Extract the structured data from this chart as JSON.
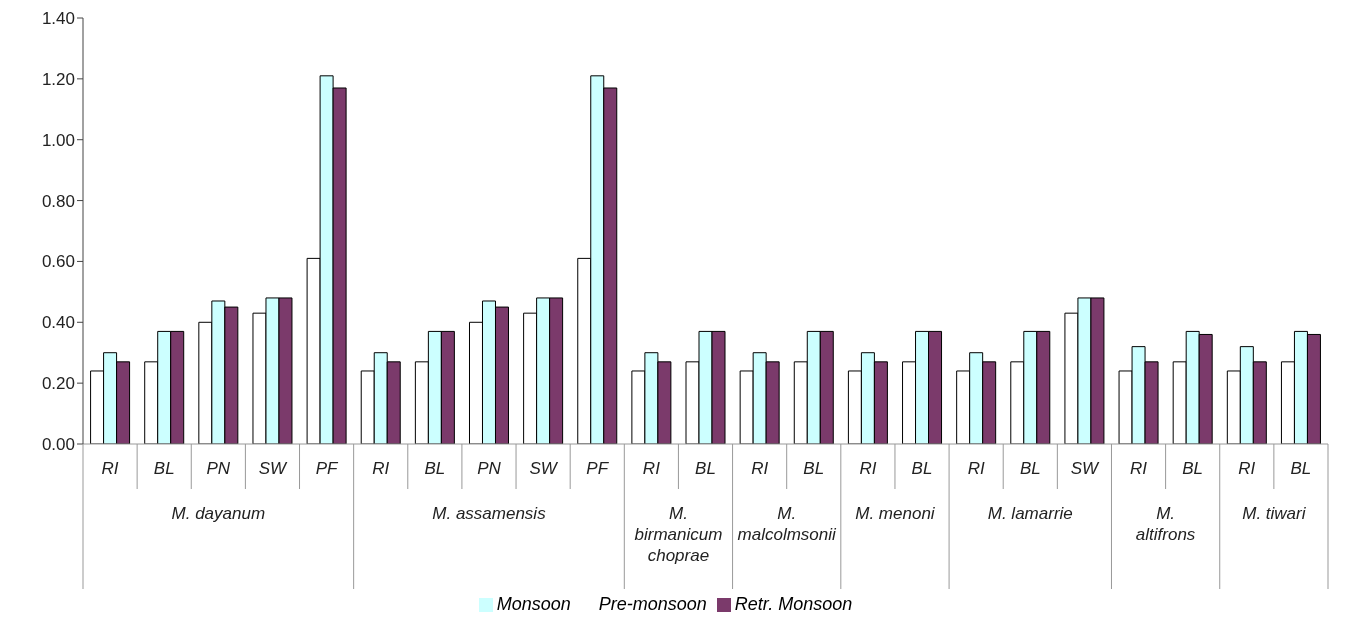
{
  "chart_data": {
    "type": "bar",
    "categories": [
      "RI",
      "BL",
      "PN",
      "SW",
      "PF",
      "RI",
      "BL",
      "PN",
      "SW",
      "PF",
      "RI",
      "BL",
      "RI",
      "BL",
      "RI",
      "BL",
      "RI",
      "BL",
      "SW",
      "RI",
      "BL",
      "RI",
      "BL"
    ],
    "annotations": [
      "M. dayanum",
      "M. assamensis",
      "M. birmanicum choprae",
      "M. malcolmsonii",
      "M. menoni",
      "M. lamarrie",
      "M. altifrons",
      "M. tiwari"
    ],
    "series": [
      {
        "name": "Pre-monsoon",
        "color": "#ffffff",
        "values": [
          0.24,
          0.27,
          0.4,
          0.43,
          0.61,
          0.24,
          0.27,
          0.4,
          0.43,
          0.61,
          0.24,
          0.27,
          0.24,
          0.27,
          0.24,
          0.27,
          0.24,
          0.27,
          0.43,
          0.24,
          0.27,
          0.24,
          0.27
        ]
      },
      {
        "name": "Monsoon",
        "color": "#ccffff",
        "values": [
          0.3,
          0.37,
          0.47,
          0.48,
          1.21,
          0.3,
          0.37,
          0.47,
          0.48,
          1.21,
          0.3,
          0.37,
          0.3,
          0.37,
          0.3,
          0.37,
          0.3,
          0.37,
          0.48,
          0.32,
          0.37,
          0.32,
          0.37
        ]
      },
      {
        "name": "Retr. Monsoon",
        "color": "#7b3a6b",
        "values": [
          0.27,
          0.37,
          0.45,
          0.48,
          1.17,
          0.27,
          0.37,
          0.45,
          0.48,
          1.17,
          0.27,
          0.37,
          0.27,
          0.37,
          0.27,
          0.37,
          0.27,
          0.37,
          0.48,
          0.27,
          0.36,
          0.27,
          0.36
        ]
      }
    ],
    "ylim": [
      0,
      1.4
    ],
    "yticks": [
      {
        "value": 0,
        "label": "0.00"
      },
      {
        "value": 0.2,
        "label": "0.20"
      },
      {
        "value": 0.4,
        "label": "0.40"
      },
      {
        "value": 0.6,
        "label": "0.60"
      },
      {
        "value": 0.8,
        "label": "0.80"
      },
      {
        "value": 1,
        "label": "1.00"
      },
      {
        "value": 1.2,
        "label": "1.20"
      },
      {
        "value": 1.4,
        "label": "1.40"
      }
    ],
    "legend": "bottom"
  }
}
